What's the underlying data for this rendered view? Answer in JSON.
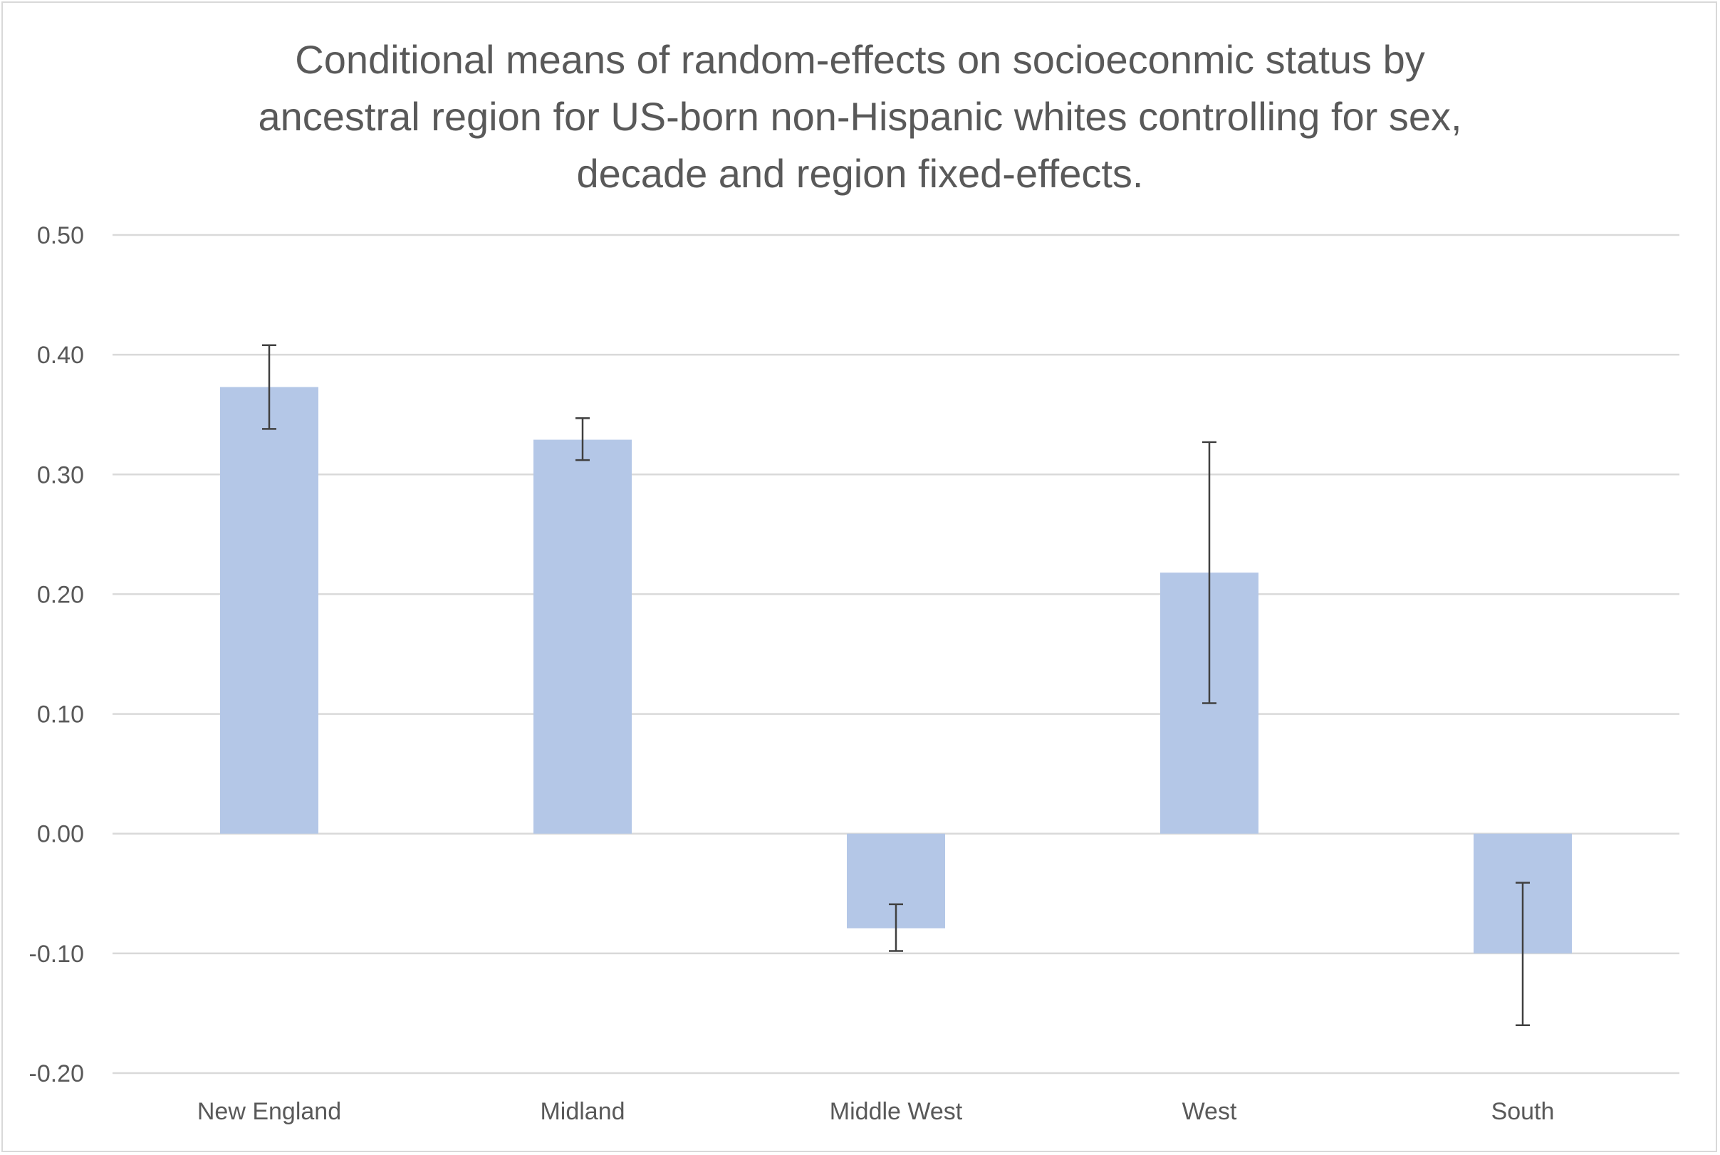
{
  "chart_data": {
    "type": "bar",
    "title": "Conditional means of random-effects on socioeconmic status by\nancestral region for US-born non-Hispanic whites controlling for sex,\ndecade and region fixed-effects.",
    "xlabel": "",
    "ylabel": "",
    "categories": [
      "New England",
      "Midland",
      "Middle West",
      "West",
      "South"
    ],
    "values": [
      0.373,
      0.329,
      -0.079,
      0.218,
      -0.1
    ],
    "error_bars": {
      "lower": [
        0.338,
        0.312,
        -0.098,
        0.109,
        -0.16
      ],
      "upper": [
        0.408,
        0.347,
        -0.059,
        0.327,
        -0.041
      ]
    },
    "ylim": [
      -0.2,
      0.5
    ],
    "yticks": [
      0.5,
      0.4,
      0.3,
      0.2,
      0.1,
      0.0,
      -0.1,
      -0.2
    ],
    "ytick_labels": [
      "0.50",
      "0.40",
      "0.30",
      "0.20",
      "0.10",
      "0.00",
      "-0.10",
      "-0.20"
    ],
    "grid": true,
    "legend": "none",
    "colors": {
      "bar": "#b4c7e7",
      "error_bar": "#404040",
      "grid": "#d9d9d9",
      "text": "#595959"
    }
  }
}
